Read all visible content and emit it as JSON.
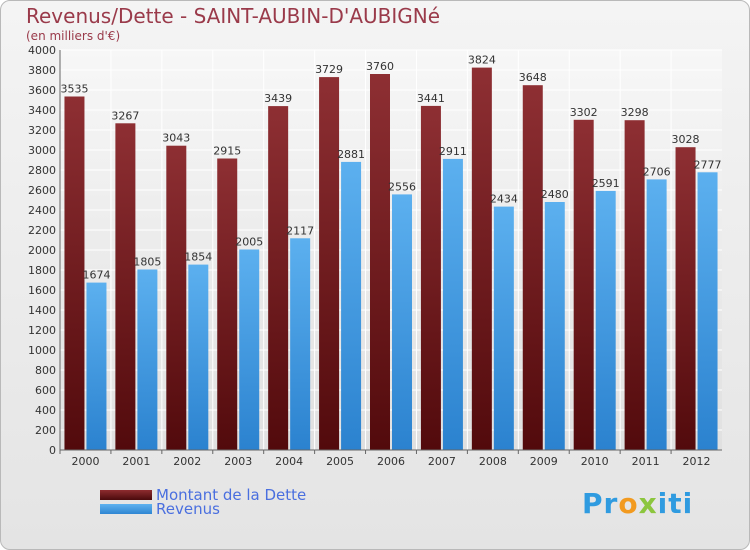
{
  "chart_data": {
    "type": "bar",
    "title": "Revenus/Dette - SAINT-AUBIN-D'AUBIGNé",
    "subtitle": "(en milliers d'€)",
    "categories": [
      "2000",
      "2001",
      "2002",
      "2003",
      "2004",
      "2005",
      "2006",
      "2007",
      "2008",
      "2009",
      "2010",
      "2011",
      "2012"
    ],
    "series": [
      {
        "name": "Montant de la Dette",
        "color": "#7b1c1f",
        "values": [
          3535,
          3267,
          3043,
          2915,
          3439,
          3729,
          3760,
          3441,
          3824,
          3648,
          3302,
          3298,
          3028
        ]
      },
      {
        "name": "Revenus",
        "color": "#3f9ee8",
        "values": [
          1674,
          1805,
          1854,
          2005,
          2117,
          2881,
          2556,
          2911,
          2434,
          2480,
          2591,
          2706,
          2777
        ]
      }
    ],
    "ylim": [
      0,
      4000
    ],
    "ytick_step": 200,
    "grid": true,
    "legend_position": "bottom-left",
    "xlabel": "",
    "ylabel": ""
  },
  "logo": {
    "parts": [
      "Pr",
      "o",
      "x",
      "iti"
    ]
  }
}
